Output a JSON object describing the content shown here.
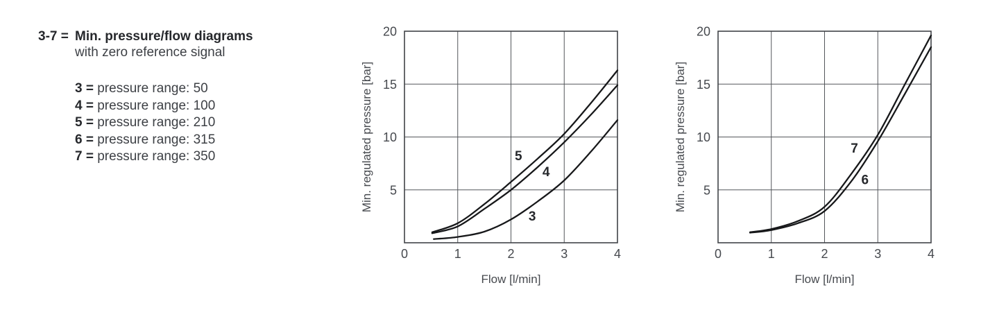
{
  "legend": {
    "title_prefix": "3-7 =",
    "title": "Min. pressure/flow diagrams",
    "subtitle": "with zero reference signal",
    "items": [
      {
        "key": "3",
        "eq": "=",
        "text": "pressure range: 50"
      },
      {
        "key": "4",
        "eq": "=",
        "text": "pressure range: 100"
      },
      {
        "key": "5",
        "eq": "=",
        "text": "pressure range: 210"
      },
      {
        "key": "6",
        "eq": "=",
        "text": "pressure range: 315"
      },
      {
        "key": "7",
        "eq": "=",
        "text": "pressure range: 350"
      }
    ]
  },
  "colors": {
    "background": "#ffffff",
    "text": "#3d4045",
    "bold_text": "#26282c",
    "tick_text": "#46494e",
    "grid_line": "#53565a",
    "plot_border": "#404347",
    "curve": "#17181a"
  },
  "chart_data": [
    {
      "type": "line",
      "title": "",
      "xlabel": "Flow [l/min]",
      "ylabel": "Min. regulated pressure [bar]",
      "xlim": [
        0,
        4
      ],
      "ylim": [
        0,
        20
      ],
      "xticks": [
        0,
        1,
        2,
        3,
        4
      ],
      "yticks": [
        5,
        10,
        15,
        20
      ],
      "grid": true,
      "legend_position": "inline-curve-labels",
      "series": [
        {
          "name": "5",
          "label_xy": [
            2.14,
            8.15
          ],
          "points": [
            [
              0.52,
              1.0
            ],
            [
              1,
              1.85
            ],
            [
              1.5,
              3.65
            ],
            [
              2,
              5.75
            ],
            [
              2.5,
              7.95
            ],
            [
              3,
              10.3
            ],
            [
              3.5,
              13.2
            ],
            [
              4,
              16.3
            ]
          ]
        },
        {
          "name": "4",
          "label_xy": [
            2.66,
            6.65
          ],
          "points": [
            [
              0.52,
              0.9
            ],
            [
              1,
              1.55
            ],
            [
              1.5,
              3.2
            ],
            [
              2,
              5.0
            ],
            [
              2.5,
              7.15
            ],
            [
              3,
              9.5
            ],
            [
              3.5,
              12.1
            ],
            [
              4,
              14.9
            ]
          ]
        },
        {
          "name": "3",
          "label_xy": [
            2.4,
            2.45
          ],
          "points": [
            [
              0.55,
              0.35
            ],
            [
              1,
              0.55
            ],
            [
              1.5,
              1.05
            ],
            [
              2,
              2.2
            ],
            [
              2.5,
              3.9
            ],
            [
              3,
              5.9
            ],
            [
              3.5,
              8.6
            ],
            [
              4,
              11.6
            ]
          ]
        }
      ]
    },
    {
      "type": "line",
      "title": "",
      "xlabel": "Flow [l/min]",
      "ylabel": "Min. regulated pressure [bar]",
      "xlim": [
        0,
        4
      ],
      "ylim": [
        0,
        20
      ],
      "xticks": [
        0,
        1,
        2,
        3,
        4
      ],
      "yticks": [
        5,
        10,
        15,
        20
      ],
      "grid": true,
      "legend_position": "inline-curve-labels",
      "series": [
        {
          "name": "7",
          "label_xy": [
            2.56,
            8.9
          ],
          "points": [
            [
              0.6,
              1.0
            ],
            [
              1,
              1.3
            ],
            [
              1.5,
              2.05
            ],
            [
              2,
              3.4
            ],
            [
              2.5,
              6.5
            ],
            [
              3,
              10.2
            ],
            [
              3.5,
              14.9
            ],
            [
              4,
              19.6
            ]
          ]
        },
        {
          "name": "6",
          "label_xy": [
            2.76,
            5.9
          ],
          "points": [
            [
              0.6,
              0.95
            ],
            [
              1,
              1.2
            ],
            [
              1.5,
              1.85
            ],
            [
              2,
              3.0
            ],
            [
              2.5,
              5.8
            ],
            [
              3,
              9.6
            ],
            [
              3.5,
              14.0
            ],
            [
              4,
              18.5
            ]
          ]
        }
      ]
    }
  ]
}
